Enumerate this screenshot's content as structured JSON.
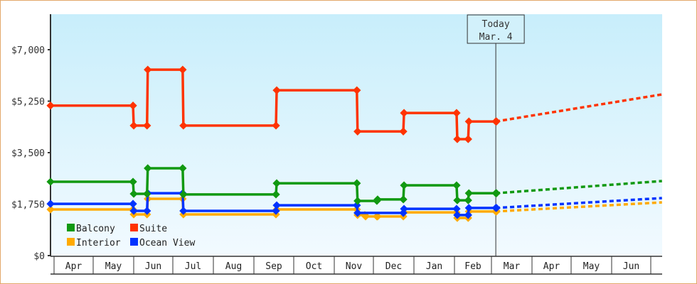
{
  "chart_data": {
    "type": "line",
    "title": "",
    "xlabel": "",
    "ylabel": "",
    "ylim": [
      0,
      7000
    ],
    "yticks": [
      {
        "value": 0,
        "label": "$0"
      },
      {
        "value": 1750,
        "label": "$1,750"
      },
      {
        "value": 3500,
        "label": "$3,500"
      },
      {
        "value": 5250,
        "label": "$5,250"
      },
      {
        "value": 7000,
        "label": "$7,000"
      }
    ],
    "x_unit": "months since Apr 1",
    "xlim": [
      -0.07,
      15.2
    ],
    "months": [
      "Apr",
      "May",
      "Jun",
      "Jul",
      "Aug",
      "Sep",
      "Oct",
      "Nov",
      "Dec",
      "Jan",
      "Feb",
      "Mar",
      "Apr",
      "May",
      "Jun"
    ],
    "today": {
      "x": 11.05,
      "line1": "Today",
      "line2": "Mar. 4"
    },
    "legend_placement": "bottom-left",
    "series": [
      {
        "name": "Balcony",
        "color": "#119911",
        "steps": [
          [
            -0.07,
            2510
          ],
          [
            1.99,
            2100
          ],
          [
            2.34,
            2970
          ],
          [
            3.23,
            2080
          ],
          [
            5.56,
            2460
          ],
          [
            7.58,
            1860
          ],
          [
            8.08,
            1910
          ],
          [
            8.74,
            2390
          ],
          [
            10.07,
            1880
          ],
          [
            10.36,
            2120
          ],
          [
            11.05,
            2120
          ]
        ],
        "projection": [
          15.2,
          2535
        ]
      },
      {
        "name": "Suite",
        "color": "#ff3300",
        "steps": [
          [
            -0.07,
            5100
          ],
          [
            1.99,
            4420
          ],
          [
            2.34,
            6320
          ],
          [
            3.23,
            4420
          ],
          [
            5.56,
            5620
          ],
          [
            7.58,
            4220
          ],
          [
            8.74,
            4850
          ],
          [
            10.07,
            3960
          ],
          [
            10.36,
            4560
          ],
          [
            11.05,
            4560
          ]
        ],
        "projection": [
          15.2,
          5480
        ]
      },
      {
        "name": "Interior",
        "color": "#ffaa00",
        "steps": [
          [
            -0.07,
            1570
          ],
          [
            1.99,
            1400
          ],
          [
            2.34,
            1930
          ],
          [
            3.23,
            1400
          ],
          [
            5.56,
            1570
          ],
          [
            7.58,
            1380
          ],
          [
            7.78,
            1330
          ],
          [
            8.08,
            1330
          ],
          [
            8.74,
            1470
          ],
          [
            10.07,
            1280
          ],
          [
            10.36,
            1500
          ],
          [
            11.05,
            1500
          ]
        ],
        "projection": [
          15.2,
          1810
        ]
      },
      {
        "name": "Ocean View",
        "color": "#0033ff",
        "steps": [
          [
            -0.07,
            1760
          ],
          [
            1.99,
            1520
          ],
          [
            2.34,
            2120
          ],
          [
            3.23,
            1520
          ],
          [
            5.56,
            1710
          ],
          [
            7.58,
            1450
          ],
          [
            8.74,
            1590
          ],
          [
            10.07,
            1380
          ],
          [
            10.36,
            1620
          ],
          [
            11.05,
            1620
          ]
        ],
        "projection": [
          15.2,
          1955
        ]
      }
    ]
  }
}
